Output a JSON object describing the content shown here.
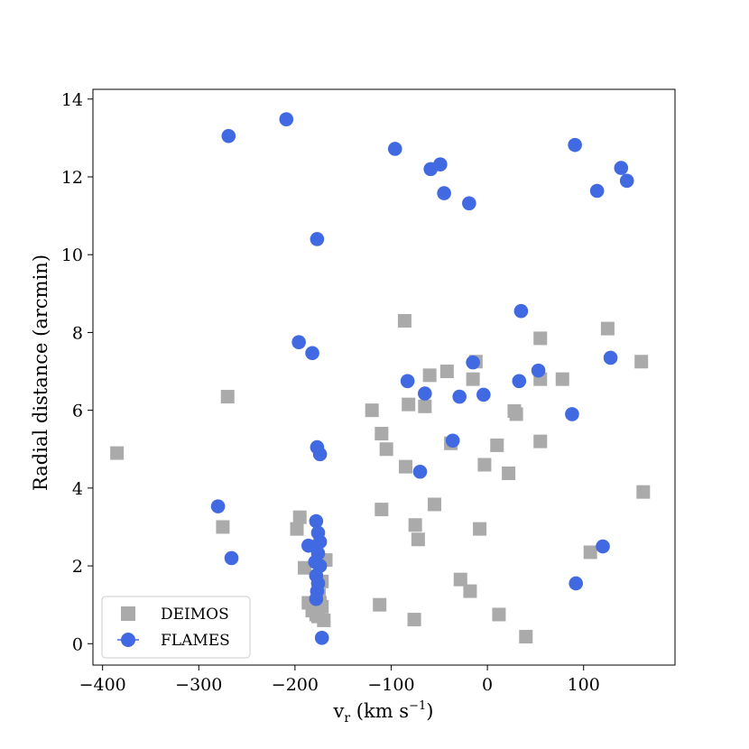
{
  "chart_data": {
    "type": "scatter",
    "title": "",
    "xlabel_main": "v",
    "xlabel_sub": "r",
    "xlabel_unit": " (km s",
    "xlabel_sup": "−1",
    "xlabel_close": ")",
    "ylabel": "Radial distance (arcmin)",
    "xlim": [
      -410,
      195
    ],
    "ylim": [
      -0.55,
      14.25
    ],
    "xticks": [
      -400,
      -300,
      -200,
      -100,
      0,
      100
    ],
    "xtick_labels": [
      "−400",
      "−300",
      "−200",
      "−100",
      "0",
      "100"
    ],
    "yticks": [
      0,
      2,
      4,
      6,
      8,
      10,
      12,
      14
    ],
    "ytick_labels": [
      "0",
      "2",
      "4",
      "6",
      "8",
      "10",
      "12",
      "14"
    ],
    "grid": false,
    "legend_position": "bottom-left",
    "series": [
      {
        "name": "DEIMOS",
        "marker": "square",
        "color": "#aaaaaa",
        "points": [
          [
            -385,
            4.9
          ],
          [
            -275,
            3.0
          ],
          [
            -270,
            6.35
          ],
          [
            -195,
            3.25
          ],
          [
            -198,
            2.95
          ],
          [
            -190,
            1.95
          ],
          [
            -186,
            1.05
          ],
          [
            -182,
            0.85
          ],
          [
            -176,
            0.7
          ],
          [
            -170,
            0.6
          ],
          [
            -168,
            2.15
          ],
          [
            -172,
            1.6
          ],
          [
            -175,
            1.25
          ],
          [
            -178,
            0.75
          ],
          [
            -174,
            1.05
          ],
          [
            -172,
            0.95
          ],
          [
            -120,
            6.0
          ],
          [
            -110,
            5.4
          ],
          [
            -105,
            5.0
          ],
          [
            -110,
            3.45
          ],
          [
            -112,
            1.0
          ],
          [
            -86,
            8.3
          ],
          [
            -85,
            4.55
          ],
          [
            -82,
            6.15
          ],
          [
            -76,
            0.62
          ],
          [
            -75,
            3.05
          ],
          [
            -72,
            2.68
          ],
          [
            -65,
            6.1
          ],
          [
            -60,
            6.9
          ],
          [
            -55,
            3.58
          ],
          [
            -42,
            7.0
          ],
          [
            -38,
            5.15
          ],
          [
            -28,
            1.65
          ],
          [
            -18,
            1.35
          ],
          [
            -15,
            6.8
          ],
          [
            -12,
            7.25
          ],
          [
            -8,
            2.95
          ],
          [
            -3,
            4.6
          ],
          [
            10,
            5.1
          ],
          [
            12,
            0.75
          ],
          [
            22,
            4.38
          ],
          [
            28,
            5.98
          ],
          [
            30,
            5.9
          ],
          [
            40,
            0.18
          ],
          [
            55,
            7.85
          ],
          [
            55,
            6.8
          ],
          [
            55,
            5.2
          ],
          [
            78,
            6.8
          ],
          [
            107,
            2.35
          ],
          [
            125,
            8.1
          ],
          [
            160,
            7.25
          ],
          [
            162,
            3.9
          ]
        ]
      },
      {
        "name": "FLAMES",
        "marker": "circle",
        "color": "#4169e1",
        "points": [
          [
            -269,
            13.05
          ],
          [
            -209,
            13.48
          ],
          [
            -177,
            10.4
          ],
          [
            -96,
            12.72
          ],
          [
            -59,
            12.2
          ],
          [
            -49,
            12.32
          ],
          [
            -45,
            11.58
          ],
          [
            -19,
            11.32
          ],
          [
            91,
            12.82
          ],
          [
            114,
            11.64
          ],
          [
            139,
            12.23
          ],
          [
            145,
            11.9
          ],
          [
            35,
            8.55
          ],
          [
            -196,
            7.75
          ],
          [
            -182,
            7.47
          ],
          [
            -83,
            6.75
          ],
          [
            -65,
            6.43
          ],
          [
            -29,
            6.35
          ],
          [
            -15,
            7.23
          ],
          [
            -4,
            6.4
          ],
          [
            33,
            6.75
          ],
          [
            53,
            7.02
          ],
          [
            128,
            7.35
          ],
          [
            88,
            5.9
          ],
          [
            -177,
            5.05
          ],
          [
            -174,
            4.87
          ],
          [
            -36,
            5.22
          ],
          [
            -70,
            4.42
          ],
          [
            -280,
            3.53
          ],
          [
            -266,
            2.2
          ],
          [
            -178,
            3.15
          ],
          [
            -176,
            2.85
          ],
          [
            -174,
            2.62
          ],
          [
            -186,
            2.52
          ],
          [
            -176,
            2.32
          ],
          [
            -179,
            2.1
          ],
          [
            -174,
            2.0
          ],
          [
            -178,
            1.75
          ],
          [
            -176,
            1.55
          ],
          [
            -177,
            1.35
          ],
          [
            -178,
            1.15
          ],
          [
            -172,
            0.15
          ],
          [
            120,
            2.5
          ],
          [
            92,
            1.55
          ]
        ]
      }
    ]
  }
}
